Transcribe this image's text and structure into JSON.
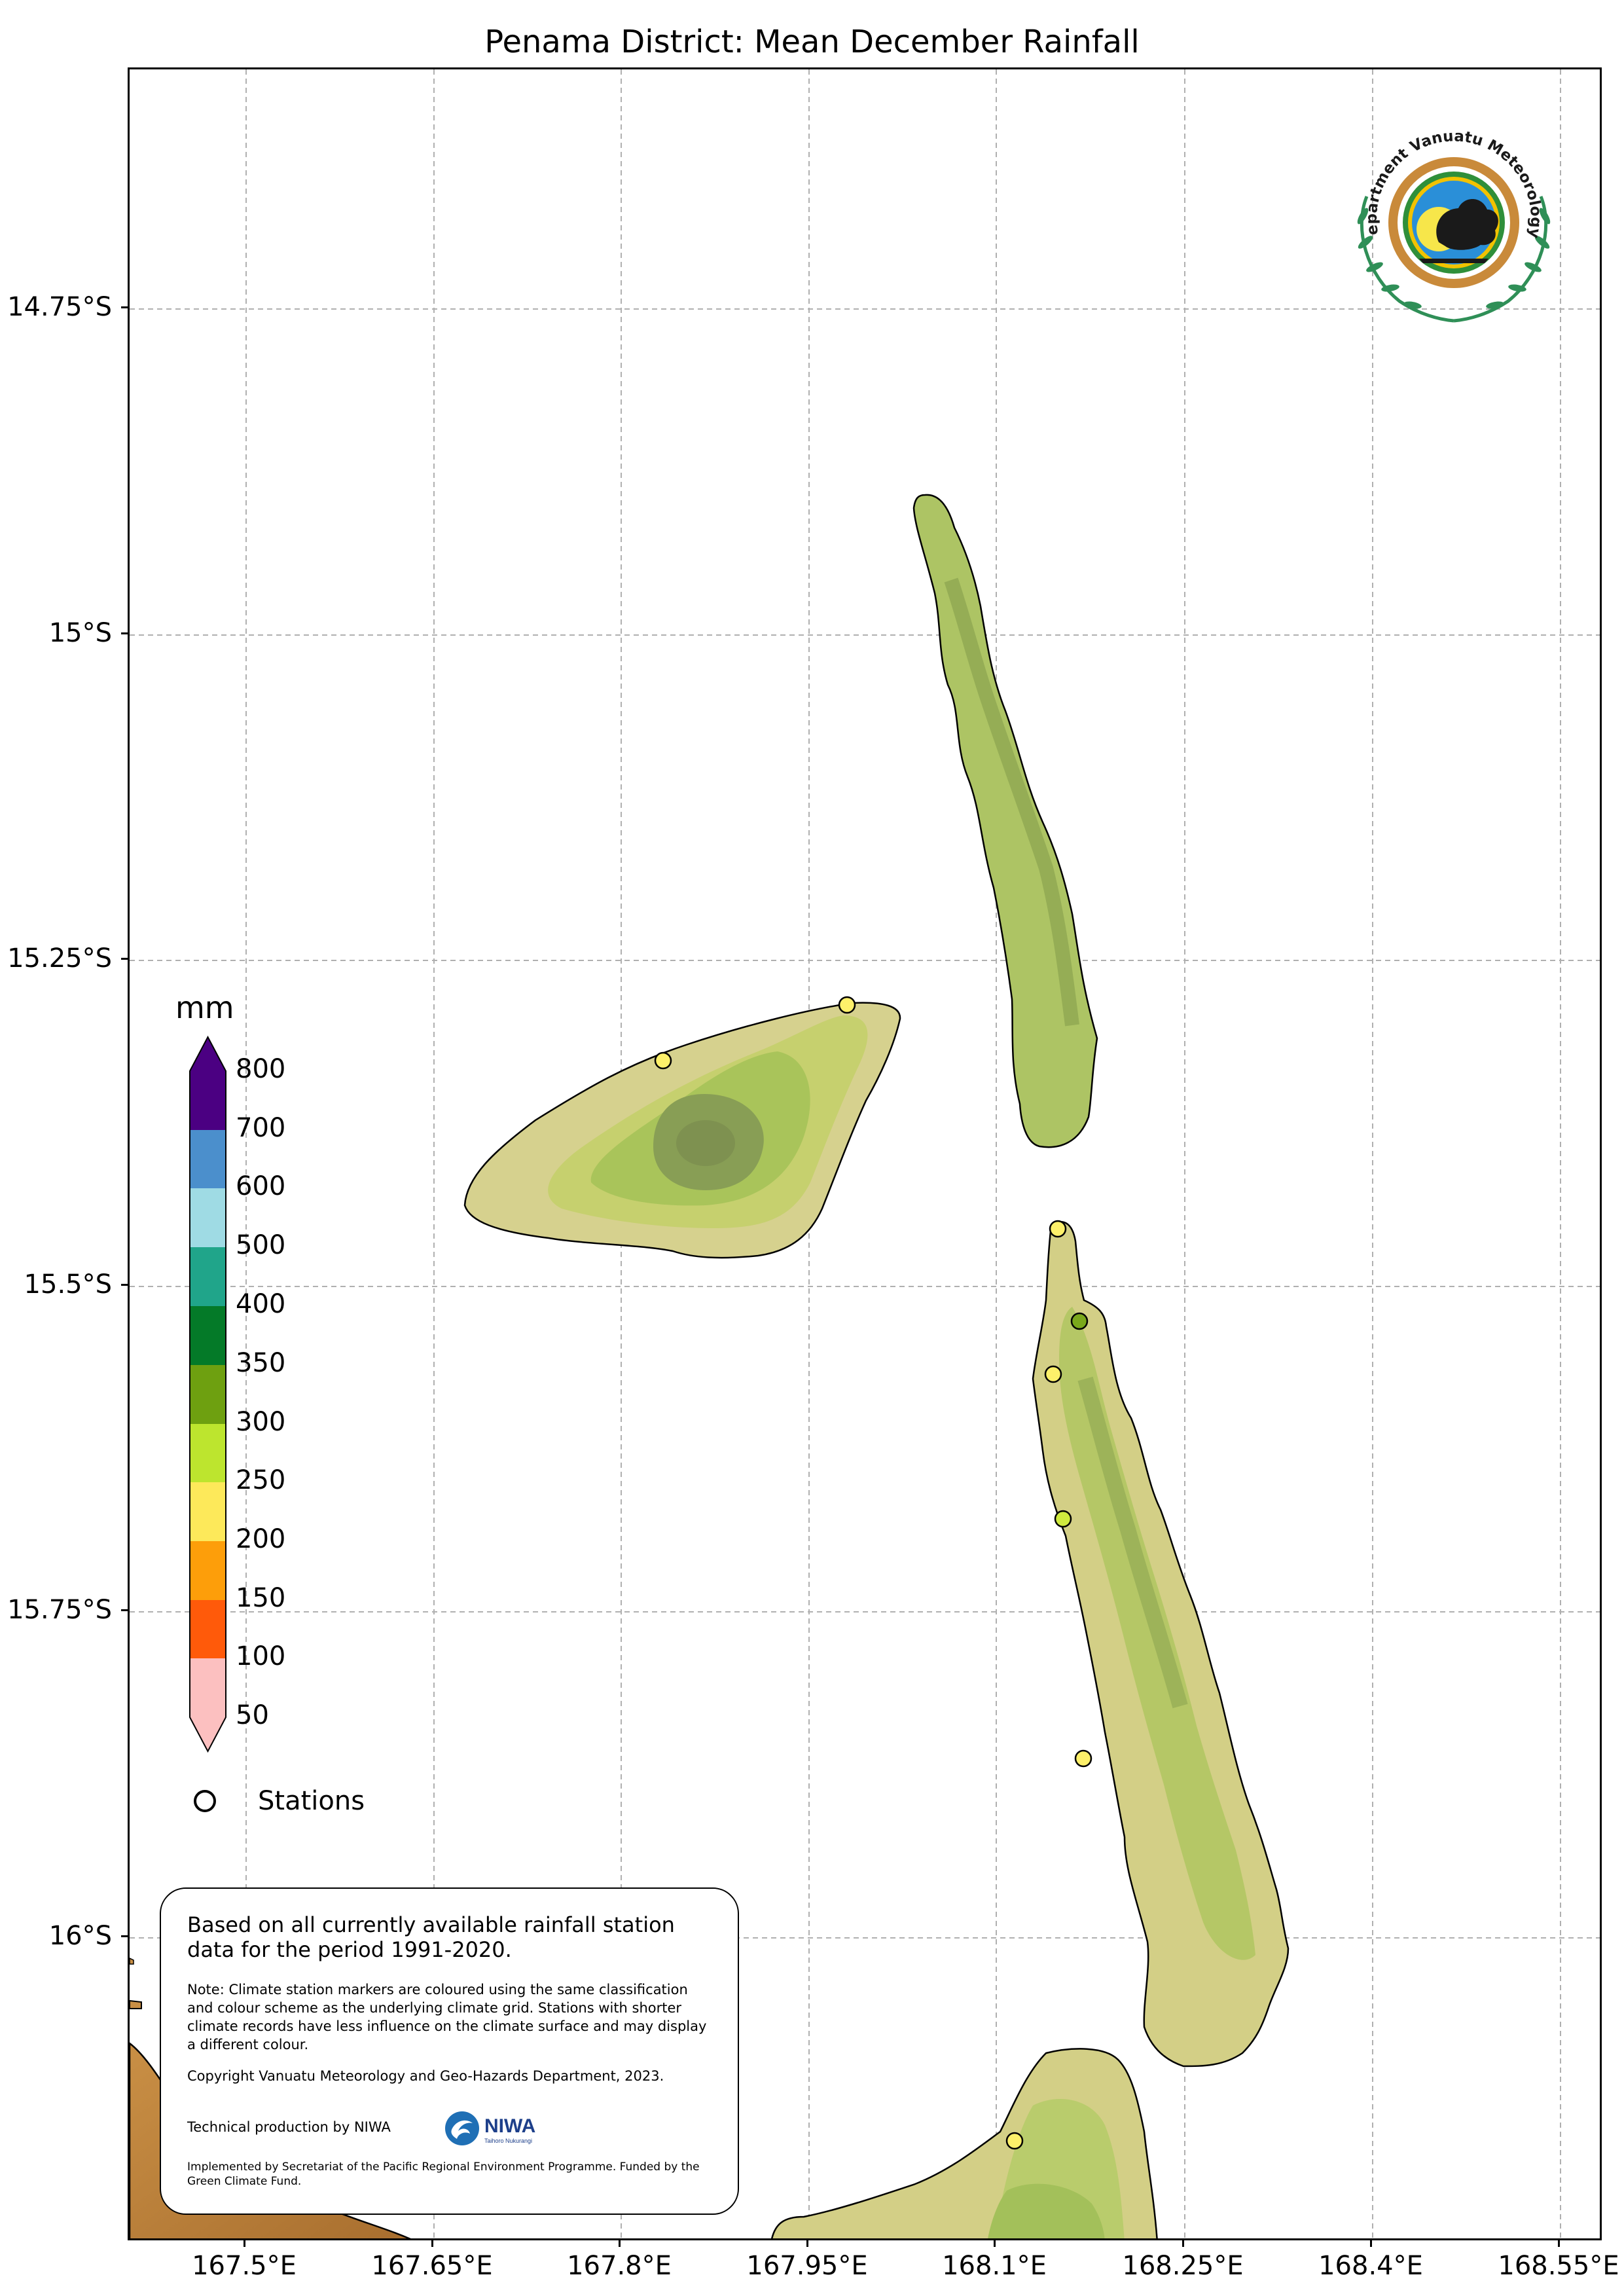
{
  "title": "Penama District: Mean December Rainfall",
  "axes": {
    "lat_labels": [
      "14.75°S",
      "15°S",
      "15.25°S",
      "15.5°S",
      "15.75°S",
      "16°S"
    ],
    "lon_labels": [
      "167.5°E",
      "167.65°E",
      "167.8°E",
      "167.95°E",
      "168.1°E",
      "168.25°E",
      "168.4°E",
      "168.55°E"
    ]
  },
  "legend": {
    "unit": "mm",
    "labels": [
      "800",
      "700",
      "600",
      "500",
      "400",
      "350",
      "300",
      "250",
      "200",
      "150",
      "100",
      "50"
    ],
    "colors": [
      "#4b0082",
      "#4b8fcc",
      "#9fdbe4",
      "#20a58a",
      "#047a28",
      "#6ea010",
      "#bde52e",
      "#fde95a",
      "#fd9e0a",
      "#ff5a0a",
      "#fcc0c0"
    ],
    "stations_label": "Stations"
  },
  "stations": [
    {
      "color": "#fdf06a"
    },
    {
      "color": "#fdf06a"
    },
    {
      "color": "#fdf06a"
    },
    {
      "color": "#7aa81c"
    },
    {
      "color": "#fdf06a"
    },
    {
      "color": "#cfea3e"
    },
    {
      "color": "#fdf06a"
    },
    {
      "color": "#fdf06a"
    }
  ],
  "info": {
    "based_on": "Based on all currently available rainfall station data for the period 1991-2020.",
    "note": "Note: Climate station markers are coloured using the same classification and colour scheme as the underlying climate grid. Stations with shorter climate records have less influence on the climate surface and may display a different colour.",
    "copyright": "Copyright Vanuatu Meteorology and Geo-Hazards Department, 2023.",
    "technical": "Technical production by NIWA",
    "niwa_name": "NIWA",
    "niwa_tagline": "Taihoro Nukurangi",
    "implemented": "Implemented by Secretariat of the Pacific Regional Environment Programme. Funded by the Green Climate Fund."
  },
  "logo": {
    "text": "Department Vanuatu Meteorology and Geo-Hazards"
  }
}
